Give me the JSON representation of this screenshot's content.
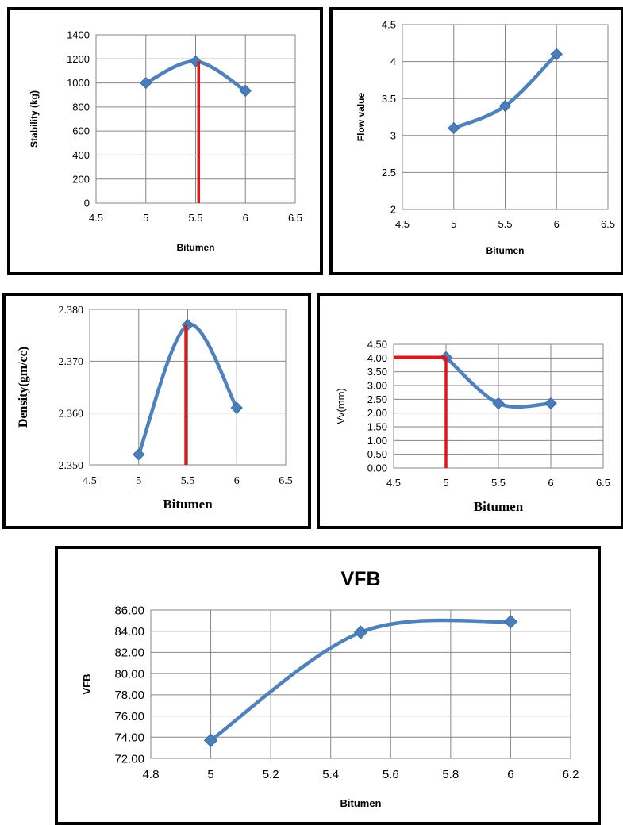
{
  "chart_data": [
    {
      "id": "stability",
      "type": "line",
      "title": "",
      "xlabel": "Bitumen",
      "ylabel": "Stability (kg)",
      "xlim": [
        4.5,
        6.5
      ],
      "ylim": [
        0,
        1400
      ],
      "xticks": [
        "4.5",
        "5",
        "5.5",
        "6",
        "6.5"
      ],
      "yticks": [
        "0",
        "200",
        "400",
        "600",
        "800",
        "1000",
        "1200",
        "1400"
      ],
      "grid": true,
      "series": [
        {
          "x": [
            5,
            5.5,
            6
          ],
          "y": [
            1000,
            1180,
            935
          ]
        }
      ],
      "marker_line": {
        "x": 5.53,
        "y_top": 1180,
        "color": "#e0161d"
      }
    },
    {
      "id": "flow",
      "type": "line",
      "title": "",
      "xlabel": "Bitumen",
      "ylabel": "Flow value",
      "xlim": [
        4.5,
        6.5
      ],
      "ylim": [
        2,
        4.5
      ],
      "xticks": [
        "4.5",
        "5",
        "5.5",
        "6",
        "6.5"
      ],
      "yticks": [
        "2",
        "2.5",
        "3",
        "3.5",
        "4",
        "4.5"
      ],
      "grid": true,
      "series": [
        {
          "x": [
            5,
            5.5,
            6
          ],
          "y": [
            3.1,
            3.4,
            4.1
          ]
        }
      ]
    },
    {
      "id": "density",
      "type": "line",
      "title": "",
      "xlabel": "Bitumen",
      "ylabel": "Density(gm/cc)",
      "xlim": [
        4.5,
        6.5
      ],
      "ylim": [
        2.35,
        2.38
      ],
      "xticks": [
        "4.5",
        "5",
        "5.5",
        "6",
        "6.5"
      ],
      "yticks": [
        "2.350",
        "2.360",
        "2.370",
        "2.380"
      ],
      "grid": true,
      "series": [
        {
          "x": [
            5,
            5.5,
            6
          ],
          "y": [
            2.352,
            2.377,
            2.361
          ]
        }
      ],
      "marker_line": {
        "x": 5.48,
        "y_top": 2.377,
        "color": "#e0161d"
      }
    },
    {
      "id": "vv",
      "type": "line",
      "title": "",
      "xlabel": "Bitumen",
      "ylabel": "Vv(mm)",
      "xlim": [
        4.5,
        6.5
      ],
      "ylim": [
        0,
        4.5
      ],
      "xticks": [
        "4.5",
        "5",
        "5.5",
        "6",
        "6.5"
      ],
      "yticks": [
        "0.00",
        "0.50",
        "1.00",
        "1.50",
        "2.00",
        "2.50",
        "3.00",
        "3.50",
        "4.00",
        "4.50"
      ],
      "grid": true,
      "series": [
        {
          "x": [
            5,
            5.5,
            6
          ],
          "y": [
            4.03,
            2.35,
            2.35
          ]
        }
      ],
      "marker_lines": {
        "x": 5,
        "y": 4.03,
        "color": "#e0161d"
      }
    },
    {
      "id": "vfb",
      "type": "line",
      "title": "VFB",
      "xlabel": "Bitumen",
      "ylabel": "VFB",
      "xlim": [
        4.8,
        6.2
      ],
      "ylim": [
        72,
        86
      ],
      "xticks": [
        "4.8",
        "5",
        "5.2",
        "5.4",
        "5.6",
        "5.8",
        "6",
        "6.2"
      ],
      "yticks": [
        "72.00",
        "74.00",
        "76.00",
        "78.00",
        "80.00",
        "82.00",
        "84.00",
        "86.00"
      ],
      "grid": true,
      "series": [
        {
          "x": [
            5,
            5.5,
            6
          ],
          "y": [
            73.7,
            83.9,
            84.9
          ]
        }
      ]
    }
  ],
  "colors": {
    "series": "#4f81bd",
    "marker": "#4a7ebb",
    "red": "#e0161d",
    "grid": "#868686"
  }
}
